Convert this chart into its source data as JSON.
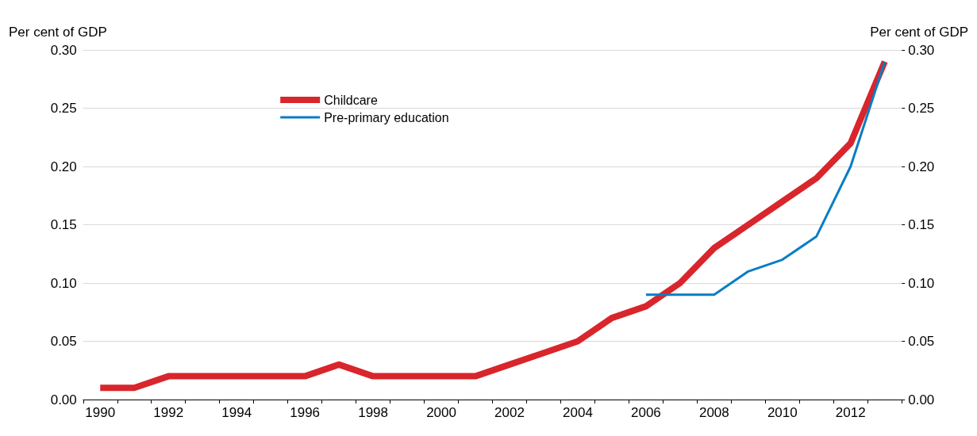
{
  "chart_data": {
    "type": "line",
    "ylabel": "Per cent of GDP",
    "y2label": "Per cent of GDP",
    "categories": [
      "1990",
      null,
      "1992",
      null,
      "1994",
      null,
      "1996",
      null,
      "1998",
      null,
      "2000",
      null,
      "2002",
      null,
      "2004",
      null,
      "2006",
      null,
      "2008",
      null,
      "2010",
      null,
      "2012",
      null
    ],
    "series": [
      {
        "name": "Childcare",
        "color": "#d9252c",
        "values": [
          0.01,
          0.01,
          0.02,
          0.02,
          0.02,
          0.02,
          0.02,
          0.03,
          0.02,
          0.02,
          0.02,
          0.02,
          0.03,
          0.04,
          0.05,
          0.07,
          0.08,
          0.1,
          0.13,
          0.15,
          0.17,
          0.19,
          0.22,
          0.29
        ]
      },
      {
        "name": "Pre-primary education",
        "color": "#0a7dc4",
        "values": [
          null,
          null,
          null,
          null,
          null,
          null,
          null,
          null,
          null,
          null,
          null,
          null,
          null,
          null,
          null,
          null,
          0.09,
          0.09,
          0.09,
          0.11,
          0.12,
          0.14,
          0.2,
          0.29
        ]
      }
    ],
    "ylim": [
      0,
      0.3
    ],
    "yticks": [
      {
        "value": 0,
        "label": "0.00"
      },
      0.05,
      {
        "value": 0.1,
        "label": "0.10"
      },
      0.15,
      {
        "value": 0.2,
        "label": "0.20"
      },
      0.25,
      {
        "value": 0.3,
        "label": "0.30"
      }
    ],
    "y2lim": [
      0,
      0.3
    ],
    "y2ticks": [
      {
        "value": 0,
        "label": "0.00"
      },
      0.05,
      {
        "value": 0.1,
        "label": "0.10"
      },
      0.15,
      {
        "value": 0.2,
        "label": "0.20"
      },
      0.25,
      {
        "value": 0.3,
        "label": "0.30"
      }
    ],
    "grid": "y",
    "legend": "top left",
    "marker": "none",
    "line_style": "solid"
  }
}
